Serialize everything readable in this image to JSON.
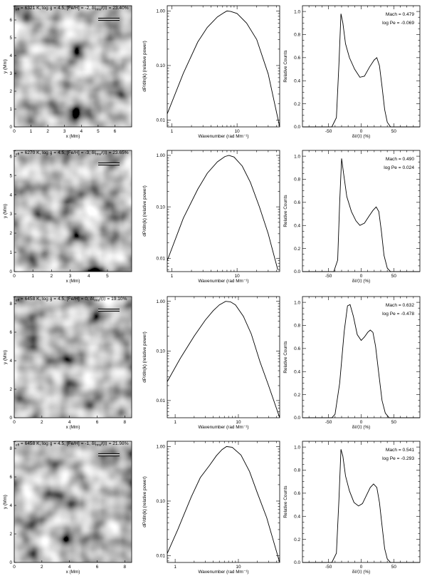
{
  "chart_data": [
    {
      "type": "heatmap",
      "title": "T_eff = 6321 K, log g = 4.5, [Fe/H] = -2, δI_rms/⟨I⟩ = 23.40%",
      "xlabel": "x (Mm)",
      "ylabel": "y (Mm)",
      "xlim": [
        0,
        7
      ],
      "ylim": [
        0,
        6.8
      ],
      "xticks": [
        "0",
        "1",
        "2",
        "3",
        "4",
        "5",
        "6"
      ],
      "yticks": [
        "0",
        "1",
        "2",
        "3",
        "4",
        "5",
        "6"
      ]
    },
    {
      "type": "line",
      "xlabel": "Wavenumber (rad Mm⁻¹)",
      "ylabel": "dP/dln(k) (relative power)",
      "xscale": "log",
      "yscale": "log",
      "xlim": [
        0.85,
        45
      ],
      "ylim": [
        0.0075,
        1.25
      ],
      "xticks": [
        "1",
        "10"
      ],
      "yticks": [
        "1.00",
        "0.10",
        "0.01"
      ],
      "x": [
        0.85,
        1.5,
        2.5,
        3.5,
        5,
        6.3,
        7,
        8,
        10,
        14,
        20,
        30,
        45
      ],
      "y": [
        0.013,
        0.072,
        0.27,
        0.5,
        0.78,
        0.93,
        1.0,
        0.98,
        0.9,
        0.6,
        0.3,
        0.07,
        0.0075
      ]
    },
    {
      "type": "line",
      "xlabel": "δI/⟨I⟩ (%)",
      "ylabel": "Relative Counts",
      "xlim": [
        -90,
        90
      ],
      "ylim": [
        0,
        1.05
      ],
      "xticks": [
        "-50",
        "0",
        "50"
      ],
      "yticks": [
        "0.0",
        "0.2",
        "0.4",
        "0.6",
        "0.8",
        "1.0"
      ],
      "x": [
        -90,
        -45,
        -38,
        -34,
        -31,
        -28,
        -24,
        -18,
        -10,
        -2,
        5,
        13,
        20,
        24,
        28,
        32,
        36,
        40,
        45,
        90
      ],
      "y": [
        0,
        0,
        0.08,
        0.55,
        0.98,
        0.9,
        0.72,
        0.6,
        0.5,
        0.43,
        0.44,
        0.52,
        0.58,
        0.6,
        0.53,
        0.35,
        0.15,
        0.04,
        0,
        0
      ],
      "annotations": [
        "Mach = 0.479",
        "log Pe = -0.069"
      ]
    },
    {
      "type": "heatmap",
      "title": "T_eff = 6270 K, log g = 4.5, [Fe/H] = -3, δI_rms/⟨I⟩ = 23.65%",
      "xlabel": "x (Mm)",
      "ylabel": "y (Mm)",
      "xlim": [
        0,
        6.3
      ],
      "ylim": [
        0,
        6.3
      ],
      "xticks": [
        "0",
        "1",
        "2",
        "3",
        "4",
        "5"
      ],
      "yticks": [
        "0",
        "1",
        "2",
        "3",
        "4",
        "5",
        "6"
      ]
    },
    {
      "type": "line",
      "xlabel": "Wavenumber (rad Mm⁻¹)",
      "ylabel": "dP/dln(k) (relative power)",
      "xscale": "log",
      "yscale": "log",
      "xlim": [
        0.85,
        45
      ],
      "ylim": [
        0.0055,
        1.25
      ],
      "xticks": [
        "1",
        "10"
      ],
      "yticks": [
        "1.00",
        "0.10",
        "0.01"
      ],
      "x": [
        0.85,
        1.5,
        2.5,
        3.5,
        5,
        6.5,
        7.5,
        9,
        12,
        16,
        22,
        30,
        42
      ],
      "y": [
        0.009,
        0.06,
        0.22,
        0.45,
        0.75,
        0.95,
        1.0,
        0.93,
        0.62,
        0.3,
        0.1,
        0.03,
        0.006
      ]
    },
    {
      "type": "line",
      "xlabel": "δI/⟨I⟩ (%)",
      "ylabel": "Relative Counts",
      "xlim": [
        -90,
        90
      ],
      "ylim": [
        0,
        1.05
      ],
      "xticks": [
        "-50",
        "0",
        "50"
      ],
      "yticks": [
        "0.0",
        "0.2",
        "0.4",
        "0.6",
        "0.8",
        "1.0"
      ],
      "x": [
        -90,
        -42,
        -36,
        -33,
        -30,
        -27,
        -22,
        -15,
        -8,
        -2,
        5,
        12,
        18,
        23,
        27,
        31,
        35,
        40,
        45,
        90
      ],
      "y": [
        0,
        0,
        0.1,
        0.6,
        0.98,
        0.85,
        0.65,
        0.52,
        0.44,
        0.4,
        0.42,
        0.48,
        0.53,
        0.56,
        0.52,
        0.35,
        0.14,
        0.03,
        0,
        0
      ],
      "annotations": [
        "Mach = 0.490",
        "log Pe = 0.024"
      ]
    },
    {
      "type": "heatmap",
      "title": "T_eff = 6458 K, log g = 4.5, [Fe/H] = 0, δI_rms/⟨I⟩ = 19.10%",
      "xlabel": "x (Mm)",
      "ylabel": "y (Mm)",
      "xlim": [
        0,
        8.5
      ],
      "ylim": [
        0,
        8.5
      ],
      "xticks": [
        "0",
        "2",
        "4",
        "6",
        "8"
      ],
      "yticks": [
        "0",
        "2",
        "4",
        "6",
        "8"
      ]
    },
    {
      "type": "line",
      "xlabel": "Wavenumber (rad Mm⁻¹)",
      "ylabel": "dP/dln(k) (relative power)",
      "xscale": "log",
      "yscale": "log",
      "xlim": [
        0.75,
        45
      ],
      "ylim": [
        0.0045,
        1.25
      ],
      "xticks": [
        "1",
        "10"
      ],
      "yticks": [
        "1.00",
        "0.10",
        "0.01"
      ],
      "x": [
        0.75,
        1.2,
        2,
        3,
        4,
        5,
        6.3,
        7.5,
        9,
        12,
        16,
        22,
        30,
        45
      ],
      "y": [
        0.024,
        0.07,
        0.2,
        0.42,
        0.65,
        0.85,
        1.0,
        0.98,
        0.85,
        0.5,
        0.22,
        0.06,
        0.02,
        0.0045
      ]
    },
    {
      "type": "line",
      "xlabel": "δI/⟨I⟩ (%)",
      "ylabel": "Relative Counts",
      "xlim": [
        -90,
        90
      ],
      "ylim": [
        0,
        1.05
      ],
      "xticks": [
        "-50",
        "0",
        "50"
      ],
      "yticks": [
        "0.0",
        "0.2",
        "0.4",
        "0.6",
        "0.8",
        "1.0"
      ],
      "x": [
        -90,
        -45,
        -40,
        -33,
        -26,
        -21,
        -17,
        -12,
        -6,
        0,
        5,
        10,
        14,
        18,
        22,
        27,
        32,
        37,
        43,
        90
      ],
      "y": [
        0,
        0,
        0.03,
        0.3,
        0.75,
        0.97,
        0.98,
        0.88,
        0.72,
        0.67,
        0.7,
        0.74,
        0.76,
        0.74,
        0.62,
        0.38,
        0.15,
        0.04,
        0,
        0
      ],
      "annotations": [
        "Mach = 0.632",
        "log Pe = -0.478"
      ]
    },
    {
      "type": "heatmap",
      "title": "T_eff = 6458 K, log g = 4.5, [Fe/H] = -1, δI_rms/⟨I⟩ = 21.98%",
      "xlabel": "x (Mm)",
      "ylabel": "y (Mm)",
      "xlim": [
        0,
        8.5
      ],
      "ylim": [
        0,
        8.5
      ],
      "xticks": [
        "0",
        "2",
        "4",
        "6",
        "8"
      ],
      "yticks": [
        "0",
        "2",
        "4",
        "6",
        "8"
      ]
    },
    {
      "type": "line",
      "xlabel": "Wavenumber (rad Mm⁻¹)",
      "ylabel": "dP/dln(k) (relative power)",
      "xscale": "log",
      "yscale": "log",
      "xlim": [
        0.75,
        45
      ],
      "ylim": [
        0.0075,
        1.25
      ],
      "xticks": [
        "1",
        "10"
      ],
      "yticks": [
        "1.00",
        "0.10",
        "0.01"
      ],
      "x": [
        0.75,
        1.1,
        1.8,
        2.5,
        3.5,
        4.5,
        5.5,
        6.5,
        8,
        11,
        15,
        20,
        28,
        45
      ],
      "y": [
        0.011,
        0.03,
        0.12,
        0.27,
        0.45,
        0.68,
        0.88,
        1.0,
        0.97,
        0.7,
        0.35,
        0.14,
        0.05,
        0.0075
      ]
    },
    {
      "type": "line",
      "xlabel": "δI/⟨I⟩ (%)",
      "ylabel": "Relative Counts",
      "xlim": [
        -90,
        90
      ],
      "ylim": [
        0,
        1.05
      ],
      "xticks": [
        "-50",
        "0",
        "50"
      ],
      "yticks": [
        "0.0",
        "0.2",
        "0.4",
        "0.6",
        "0.8",
        "1.0"
      ],
      "x": [
        -90,
        -45,
        -38,
        -34,
        -31,
        -28,
        -24,
        -18,
        -11,
        -4,
        2,
        8,
        14,
        19,
        24,
        28,
        32,
        36,
        40,
        45,
        90
      ],
      "y": [
        0,
        0,
        0.08,
        0.55,
        0.98,
        0.92,
        0.75,
        0.62,
        0.52,
        0.49,
        0.51,
        0.58,
        0.65,
        0.68,
        0.65,
        0.52,
        0.32,
        0.12,
        0.03,
        0,
        0
      ],
      "annotations": [
        "Mach = 0.541",
        "log Pe = -0.293"
      ]
    }
  ]
}
